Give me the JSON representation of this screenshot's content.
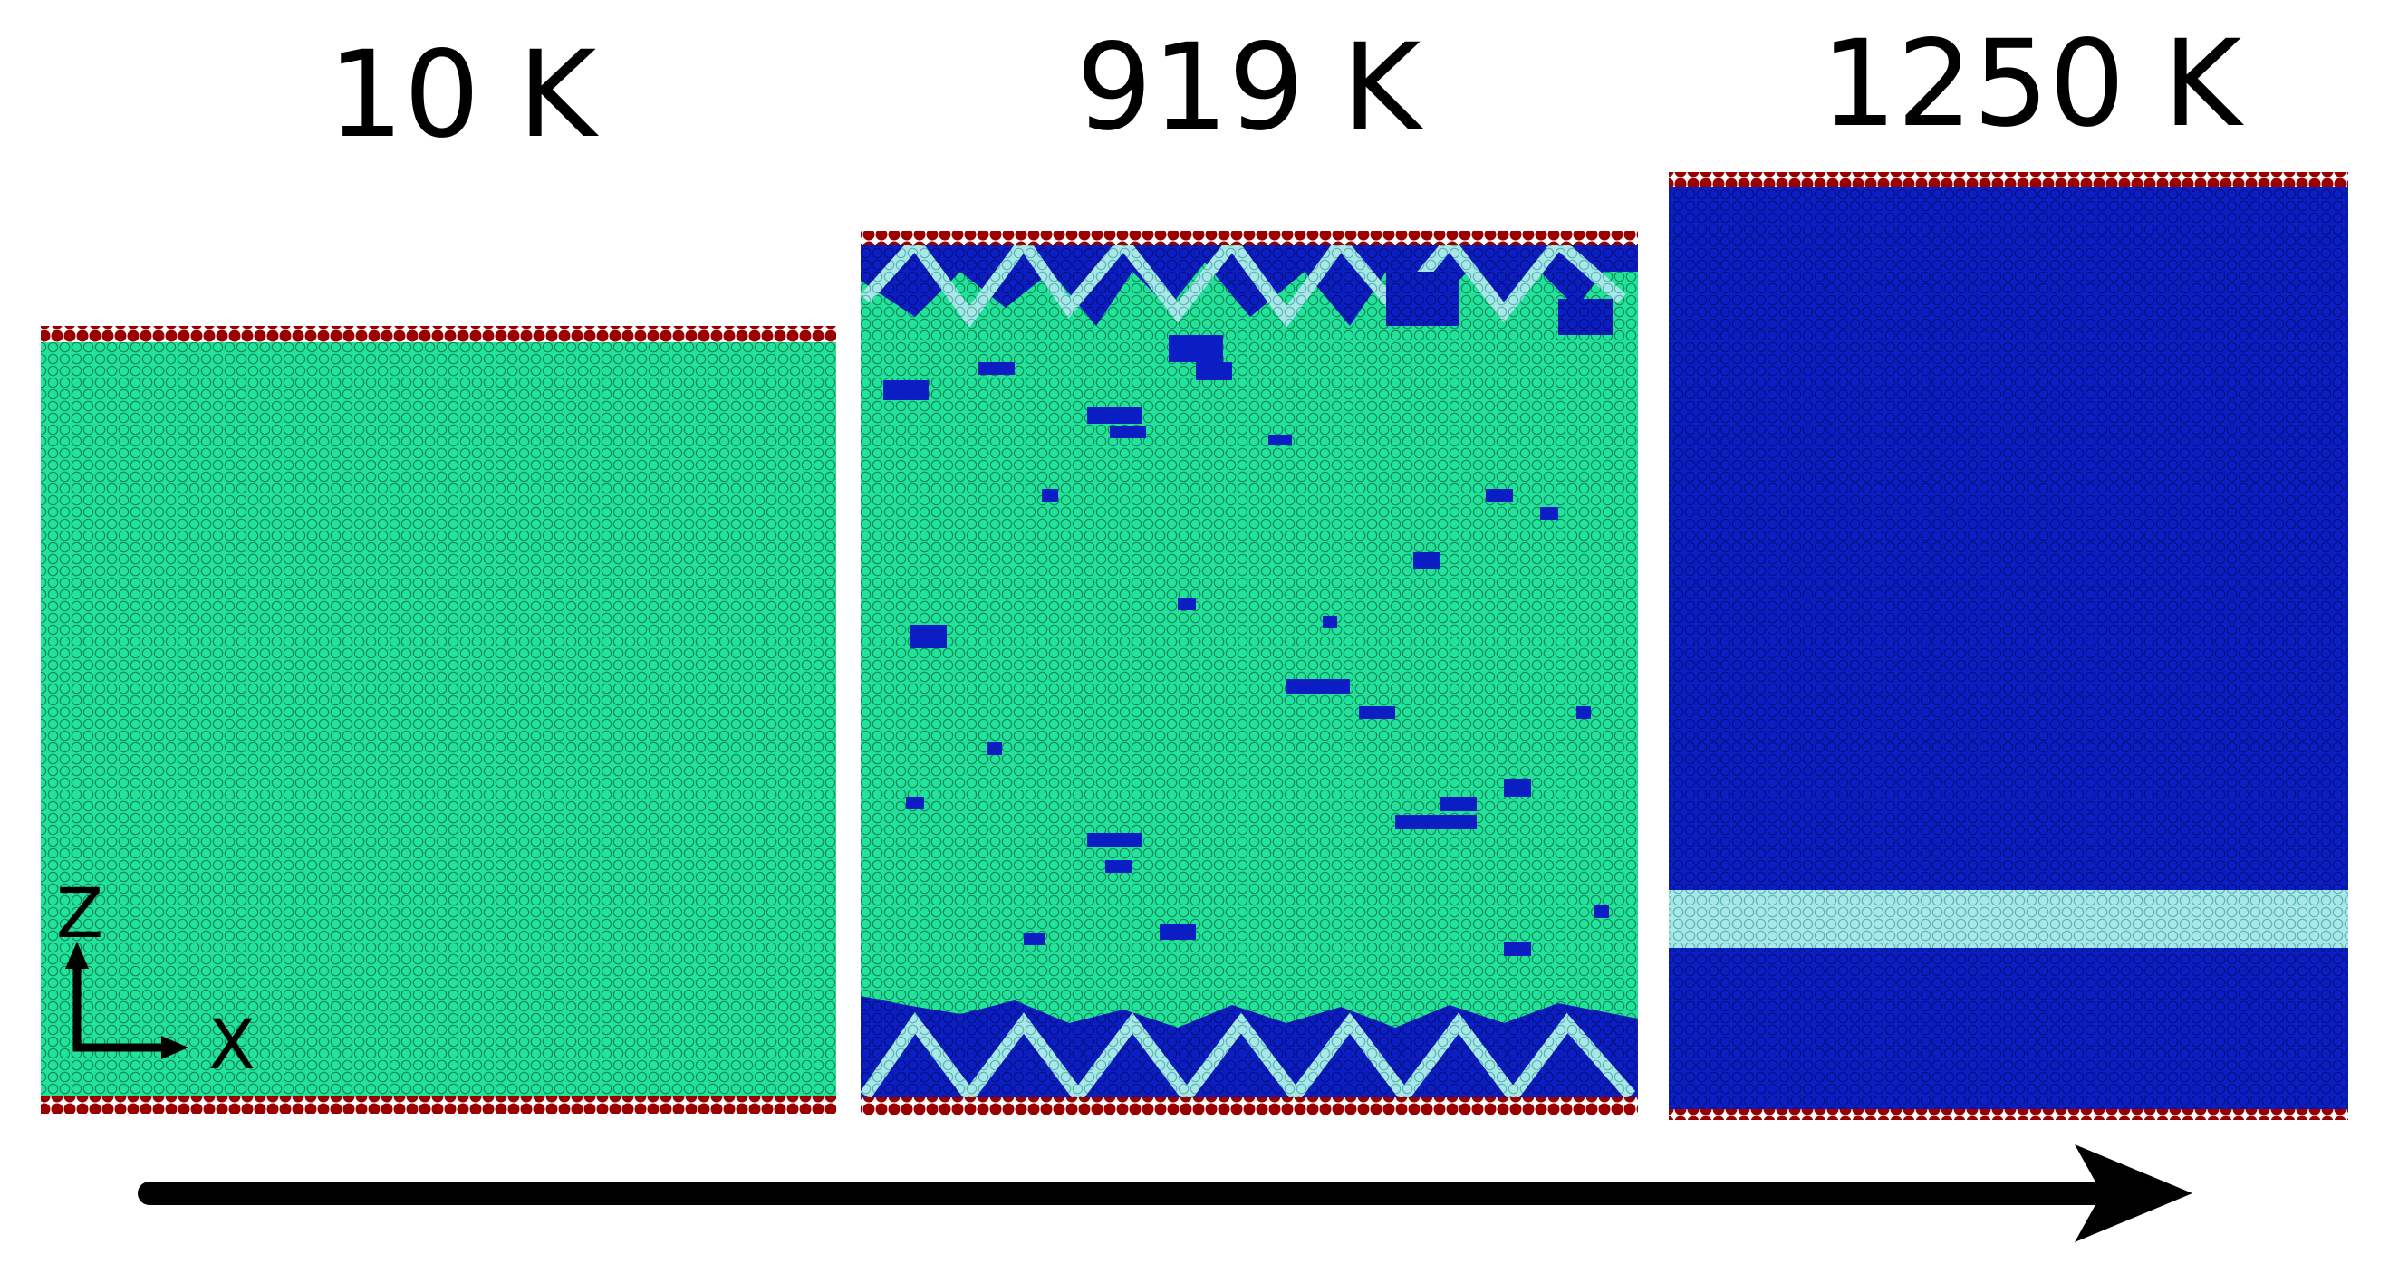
{
  "panels": [
    {
      "label": "10 K",
      "phase": "fcc-green"
    },
    {
      "label": "919 K",
      "phase": "mixed"
    },
    {
      "label": "1250 K",
      "phase": "bcc-blue"
    }
  ],
  "axes": {
    "z_label": "Z",
    "x_label": "X"
  },
  "colors": {
    "green": "#22e39a",
    "blue": "#0b1ec4",
    "light_cyan": "#a8e8e8",
    "red": "#9a0000",
    "black": "#000000"
  }
}
